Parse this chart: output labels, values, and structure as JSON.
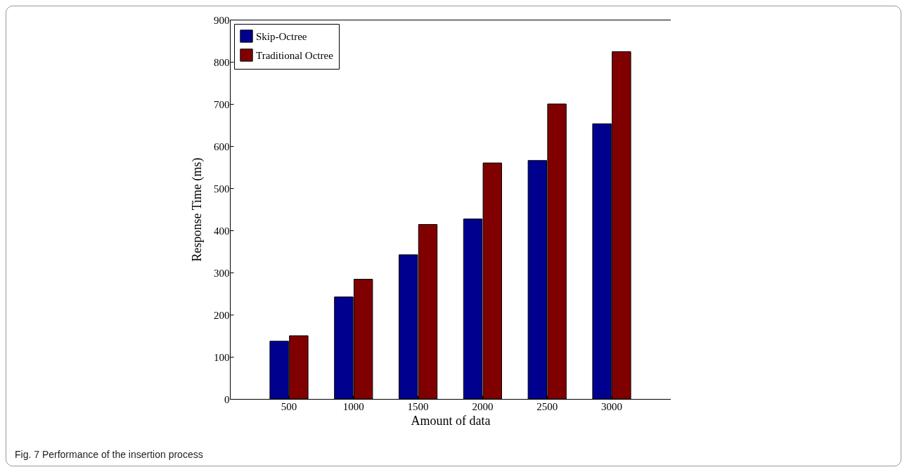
{
  "chart_data": {
    "type": "bar",
    "xlabel": "Amount of data",
    "ylabel": "Response Time (ms)",
    "categories": [
      "500",
      "1000",
      "1500",
      "2000",
      "2500",
      "3000"
    ],
    "series": [
      {
        "name": "Skip-Octree",
        "color": "#00008f",
        "values": [
          137,
          242,
          342,
          427,
          566,
          653
        ]
      },
      {
        "name": "Traditional Octree",
        "color": "#800000",
        "values": [
          150,
          284,
          414,
          560,
          700,
          824
        ]
      }
    ],
    "ylim": [
      0,
      900
    ],
    "yticks": [
      0,
      100,
      200,
      300,
      400,
      500,
      600,
      700,
      800,
      900
    ],
    "grid": false,
    "legend": "top left",
    "annotations": [
      "Fig. 7 Performance of the insertion process"
    ]
  }
}
